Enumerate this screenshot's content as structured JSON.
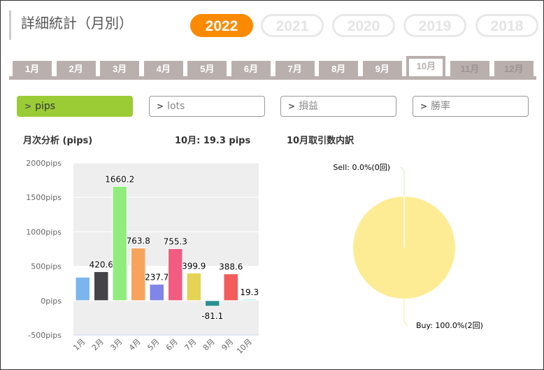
{
  "title": "詳細統計（月別）",
  "years": [
    {
      "label": "2022",
      "active": true
    },
    {
      "label": "2021"
    },
    {
      "label": "2020"
    },
    {
      "label": "2019"
    },
    {
      "label": "2018"
    }
  ],
  "months": [
    {
      "label": "1月"
    },
    {
      "label": "2月"
    },
    {
      "label": "3月"
    },
    {
      "label": "4月"
    },
    {
      "label": "5月"
    },
    {
      "label": "6月"
    },
    {
      "label": "7月"
    },
    {
      "label": "8月"
    },
    {
      "label": "9月"
    },
    {
      "label": "10月",
      "active": true
    },
    {
      "label": "11月",
      "disabled": true
    },
    {
      "label": "12月",
      "disabled": true
    }
  ],
  "metrics": [
    {
      "label": "pips",
      "active": true
    },
    {
      "label": "lots"
    },
    {
      "label": "損益"
    },
    {
      "label": "勝率"
    }
  ],
  "chart_heading": "月次分析 (pips)",
  "month_summary": "10月:  19.3 pips",
  "pie_heading": "10月取引数内訳",
  "accent": "#fb8a00",
  "chart_data": [
    {
      "type": "bar",
      "categories": [
        "1月",
        "2月",
        "3月",
        "4月",
        "5月",
        "6月",
        "7月",
        "8月",
        "9月",
        "10月"
      ],
      "values": [
        340,
        420.6,
        1660.2,
        763.8,
        237.7,
        755.3,
        399.9,
        -81.1,
        388.6,
        19.3
      ],
      "data_labels": [
        "",
        "420.6",
        "1660.2",
        "763.8",
        "237.7",
        "755.3",
        "399.9",
        "-81.1",
        "388.6",
        "19.3"
      ],
      "colors": [
        "#7cb5ec",
        "#434348",
        "#90ed7d",
        "#f7a35c",
        "#8085e9",
        "#f15c80",
        "#e4d354",
        "#2b908f",
        "#f45b5b",
        "#91e8e1"
      ],
      "ylim": [
        -500,
        2000
      ],
      "yticks": [
        "2000pips",
        "1500pips",
        "1000pips",
        "500pips",
        "0pips",
        "-500pips"
      ],
      "ytick_values": [
        2000,
        1500,
        1000,
        500,
        0,
        -500
      ],
      "grid": true
    },
    {
      "type": "pie",
      "slices": [
        {
          "name": "Sell",
          "value": 0,
          "label": "Sell: 0.0%(0回)",
          "color": "#c8f0b0"
        },
        {
          "name": "Buy",
          "value": 2,
          "label": "Buy: 100.0%(2回)",
          "color": "#fdec94"
        }
      ]
    }
  ]
}
